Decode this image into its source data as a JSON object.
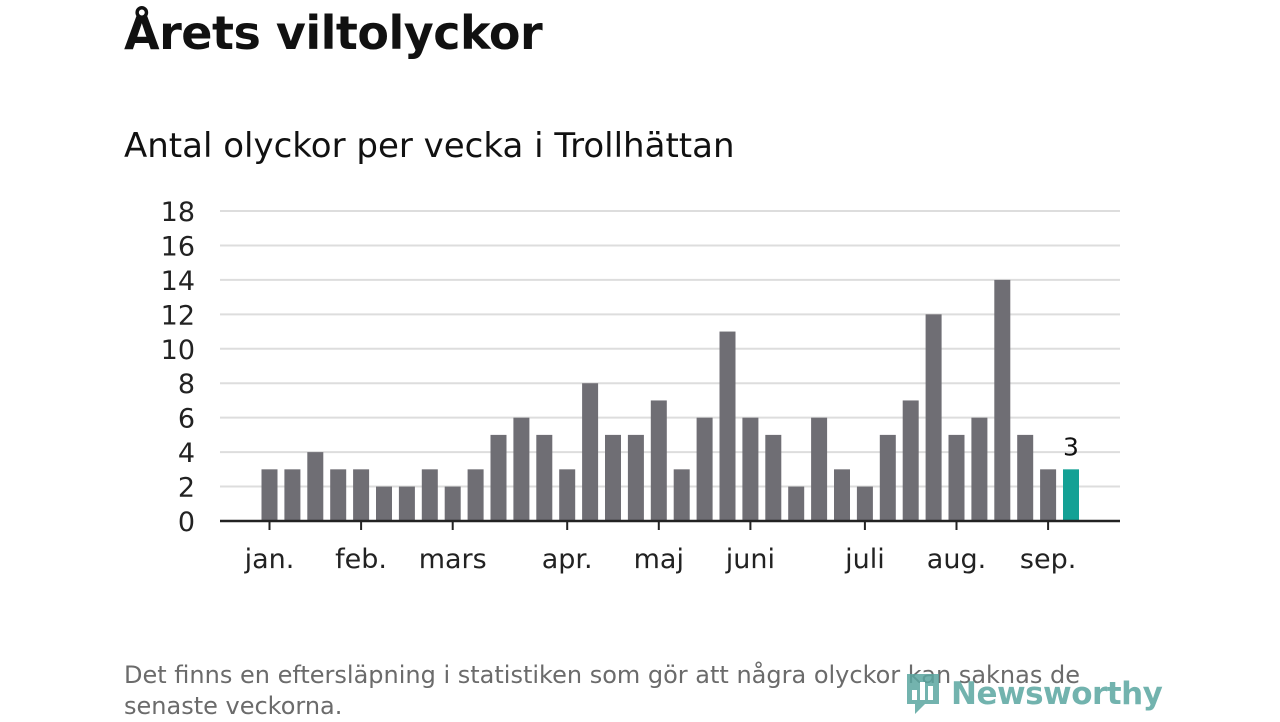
{
  "header": {
    "title": "Årets viltolyckor",
    "subtitle": "Antal olyckor per vecka i Trollhättan"
  },
  "footer": {
    "note": "Det finns en eftersläpning i statistiken som gör att några olyckor kan saknas de senaste veckorna.",
    "logo_text": "Newsworthy"
  },
  "colors": {
    "bar": "#6f6e74",
    "highlight": "#14a195",
    "grid": "#dddddd",
    "axis": "#222222"
  },
  "chart_data": {
    "type": "bar",
    "title": "Antal olyckor per vecka i Trollhättan",
    "xlabel": "",
    "ylabel": "",
    "ylim": [
      0,
      18
    ],
    "yticks": [
      0,
      2,
      4,
      6,
      8,
      10,
      12,
      14,
      16,
      18
    ],
    "grid": true,
    "month_labels": [
      {
        "label": "jan.",
        "week": 1
      },
      {
        "label": "feb.",
        "week": 5
      },
      {
        "label": "mars",
        "week": 9
      },
      {
        "label": "apr.",
        "week": 14
      },
      {
        "label": "maj",
        "week": 18
      },
      {
        "label": "juni",
        "week": 22
      },
      {
        "label": "juli",
        "week": 27
      },
      {
        "label": "aug.",
        "week": 31
      },
      {
        "label": "sep.",
        "week": 35
      }
    ],
    "weeks": [
      1,
      2,
      3,
      4,
      5,
      6,
      7,
      8,
      9,
      10,
      11,
      12,
      13,
      14,
      15,
      16,
      17,
      18,
      19,
      20,
      21,
      22,
      23,
      24,
      25,
      26,
      27,
      28,
      29,
      30,
      31,
      32,
      33,
      34,
      35,
      36
    ],
    "values": [
      3,
      3,
      4,
      3,
      3,
      2,
      2,
      3,
      2,
      3,
      5,
      6,
      5,
      3,
      8,
      5,
      5,
      7,
      3,
      6,
      11,
      6,
      5,
      2,
      6,
      3,
      2,
      5,
      7,
      12,
      5,
      6,
      14,
      5,
      3,
      3
    ],
    "highlight_index": 35,
    "data_labels": [
      {
        "index": 35,
        "label": "3"
      }
    ]
  }
}
